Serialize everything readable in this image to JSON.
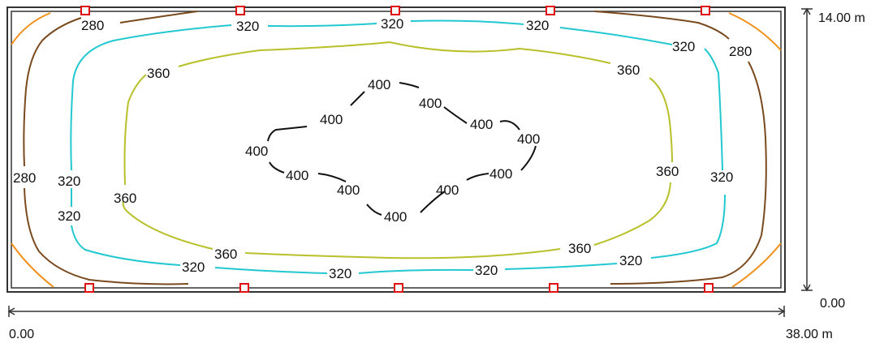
{
  "room": {
    "dimensions": {
      "y_top_label": "14.00 m",
      "y_bottom_label": "0.00",
      "x_left_label": "0.00",
      "x_right_label": "38.00 m"
    }
  },
  "colors": {
    "iso_260": "#f0901a",
    "iso_280": "#7a4a1e",
    "iso_320": "#22c8d0",
    "iso_360": "#b8c02a",
    "iso_400": "#111111",
    "luminaire": "#e01010",
    "room_border": "#333333"
  },
  "isolines": [
    {
      "value": "280",
      "color_key": "iso_280"
    },
    {
      "value": "320",
      "color_key": "iso_320"
    },
    {
      "value": "360",
      "color_key": "iso_360"
    },
    {
      "value": "400",
      "color_key": "iso_400"
    }
  ],
  "labels": {
    "l280_top_left": "280",
    "l280_top_right": "280",
    "l280_left": "280",
    "l320_top_1": "320",
    "l320_top_2": "320",
    "l320_top_3": "320",
    "l320_top_4": "320",
    "l320_left_1": "320",
    "l320_left_2": "320",
    "l320_right": "320",
    "l320_bottom_1": "320",
    "l320_bottom_2": "320",
    "l320_bottom_3": "320",
    "l320_bottom_4": "320",
    "l360_top_left": "360",
    "l360_top_right": "360",
    "l360_left": "360",
    "l360_right": "360",
    "l360_bottom_left": "360",
    "l360_bottom_right": "360",
    "l400_1": "400",
    "l400_2": "400",
    "l400_3": "400",
    "l400_4": "400",
    "l400_5": "400",
    "l400_6": "400",
    "l400_7": "400",
    "l400_8": "400",
    "l400_9": "400",
    "l400_10": "400"
  },
  "luminaires": {
    "count_top": 5,
    "count_bottom": 5
  }
}
